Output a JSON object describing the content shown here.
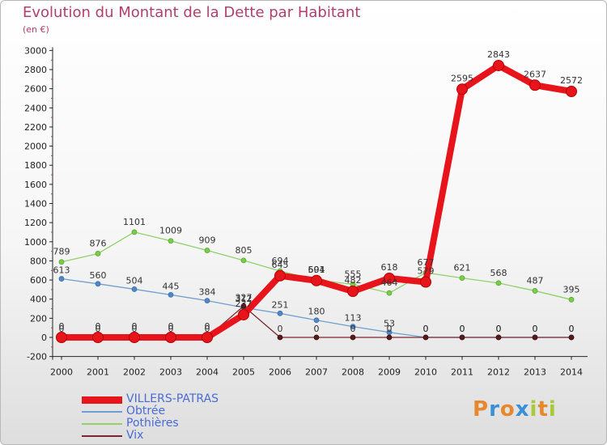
{
  "header": {
    "title": "Evolution du Montant de la Dette par Habitant",
    "unit": "(en €)"
  },
  "chart_data": {
    "type": "line",
    "title": "Evolution du Montant de la Dette par Habitant",
    "subtitle": "(en €)",
    "xlabel": "",
    "ylabel": "",
    "x": [
      "2000",
      "2001",
      "2002",
      "2003",
      "2004",
      "2005",
      "2006",
      "2007",
      "2008",
      "2009",
      "2010",
      "2011",
      "2012",
      "2013",
      "2014"
    ],
    "ylim": [
      -200,
      3000
    ],
    "yticks": [
      -200,
      0,
      200,
      400,
      600,
      800,
      1000,
      1200,
      1400,
      1600,
      1800,
      2000,
      2200,
      2400,
      2600,
      2800,
      3000
    ],
    "grid": false,
    "legend_position": "bottom-left",
    "series": [
      {
        "name": "VILLERS-PATRAS",
        "color": "#e8141c",
        "values": [
          0,
          0,
          0,
          0,
          0,
          237,
          645,
          594,
          482,
          618,
          579,
          2595,
          2843,
          2637,
          2572
        ]
      },
      {
        "name": "Obtrée",
        "color": "#6f9ecf",
        "values": [
          613,
          560,
          504,
          445,
          384,
          312,
          251,
          180,
          113,
          53,
          0,
          0,
          0,
          0,
          0
        ]
      },
      {
        "name": "Pothières",
        "color": "#8fd16a",
        "values": [
          789,
          876,
          1101,
          1009,
          909,
          805,
          694,
          601,
          555,
          464,
          677,
          621,
          568,
          487,
          395
        ]
      },
      {
        "name": "Vix",
        "color": "#7a2a30",
        "values": [
          0,
          0,
          0,
          0,
          0,
          327,
          0,
          0,
          0,
          0,
          0,
          0,
          0,
          0,
          0
        ]
      }
    ],
    "data_labels": {
      "VILLERS-PATRAS": [
        "0",
        "0",
        "0",
        "0",
        "0",
        "237",
        "645",
        "594",
        "482",
        "618",
        "579",
        "2595",
        "2843",
        "2637",
        "2572"
      ],
      "Obtrée": [
        "613",
        "560",
        "504",
        "445",
        "384",
        "312",
        "251",
        "180",
        "113",
        "53",
        "0",
        "0",
        "0",
        "0",
        "0"
      ],
      "Pothières": [
        "789",
        "876",
        "1101",
        "1009",
        "909",
        "805",
        "694",
        "601",
        "555",
        "464",
        "677",
        "621",
        "568",
        "487",
        "395"
      ],
      "Vix": [
        "0",
        "0",
        "0",
        "0",
        "0",
        "327",
        "0",
        "0",
        "0",
        "0",
        "0",
        "0",
        "0",
        "0",
        "0"
      ]
    }
  },
  "logo": {
    "letters": [
      "P",
      "r",
      "o",
      "x",
      "i",
      "t",
      "i"
    ],
    "colors": [
      "#e6892e",
      "#3a8fd6",
      "#e6892e",
      "#3a8fd6",
      "#a8c93a",
      "#e6892e",
      "#a8c93a"
    ]
  }
}
